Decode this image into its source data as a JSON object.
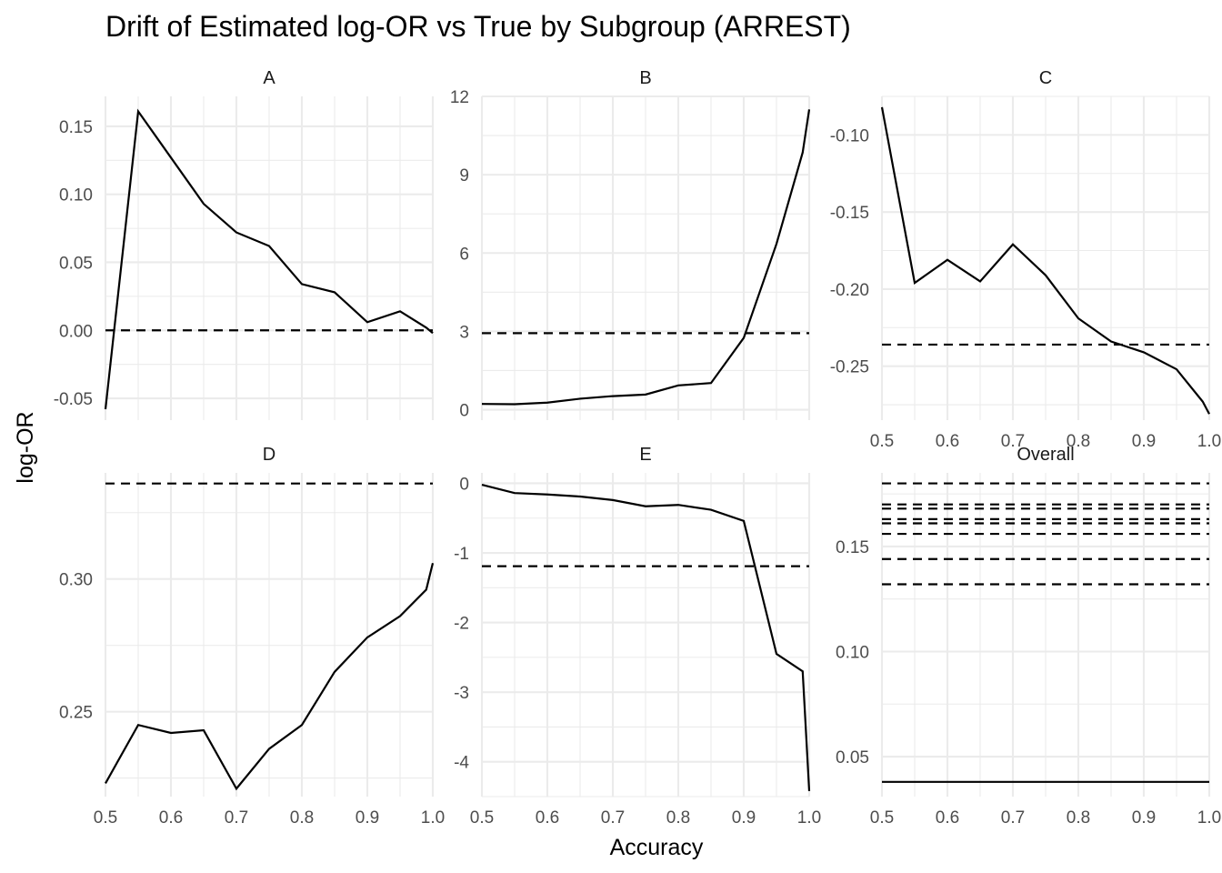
{
  "chart_data": {
    "type": "line",
    "title": "Drift of Estimated log-OR vs True by Subgroup (ARREST)",
    "xlabel": "Accuracy",
    "ylabel": "log-OR",
    "grid": true,
    "legend": "none",
    "line_styles": {
      "solid": "estimated log-OR",
      "dashed": "true log-OR"
    },
    "panels": [
      {
        "name": "A",
        "xlim": [
          0.5,
          1.0
        ],
        "ylim": [
          -0.066,
          0.172
        ],
        "y_ticks": [
          -0.05,
          0.0,
          0.05,
          0.1,
          0.15
        ],
        "y_tick_labels": [
          "-0.05",
          "0.00",
          "0.05",
          "0.10",
          "0.15"
        ],
        "show_x_ticks": false,
        "x": [
          0.5,
          0.55,
          0.6,
          0.65,
          0.7,
          0.75,
          0.8,
          0.85,
          0.9,
          0.95,
          0.99,
          1.0
        ],
        "estimated": [
          -0.058,
          0.161,
          0.127,
          0.093,
          0.072,
          0.062,
          0.034,
          0.028,
          0.006,
          0.014,
          0.002,
          -0.002
        ],
        "true_values": [
          0.0
        ]
      },
      {
        "name": "B",
        "xlim": [
          0.5,
          1.0
        ],
        "ylim": [
          -0.4,
          12.0
        ],
        "y_ticks": [
          0,
          3,
          6,
          9,
          12
        ],
        "y_tick_labels": [
          "0",
          "3",
          "6",
          "9",
          "12"
        ],
        "show_x_ticks": false,
        "x": [
          0.5,
          0.55,
          0.6,
          0.65,
          0.7,
          0.75,
          0.8,
          0.85,
          0.9,
          0.95,
          0.99,
          1.0
        ],
        "estimated": [
          0.22,
          0.21,
          0.27,
          0.42,
          0.52,
          0.58,
          0.93,
          1.02,
          2.75,
          6.35,
          9.85,
          11.5
        ],
        "true_values": [
          2.93
        ]
      },
      {
        "name": "C",
        "xlim": [
          0.5,
          1.0
        ],
        "ylim": [
          -0.285,
          -0.075
        ],
        "y_ticks": [
          -0.25,
          -0.2,
          -0.15,
          -0.1
        ],
        "y_tick_labels": [
          "-0.25",
          "-0.20",
          "-0.15",
          "-0.10"
        ],
        "show_x_ticks": true,
        "x": [
          0.5,
          0.55,
          0.6,
          0.65,
          0.7,
          0.75,
          0.8,
          0.85,
          0.9,
          0.95,
          0.99,
          1.0
        ],
        "estimated": [
          -0.082,
          -0.196,
          -0.181,
          -0.195,
          -0.171,
          -0.191,
          -0.219,
          -0.234,
          -0.241,
          -0.252,
          -0.273,
          -0.281
        ],
        "true_values": [
          -0.236
        ]
      },
      {
        "name": "D",
        "xlim": [
          0.5,
          1.0
        ],
        "ylim": [
          0.218,
          0.34
        ],
        "y_ticks": [
          0.25,
          0.3
        ],
        "y_tick_labels": [
          "0.25",
          "0.30"
        ],
        "show_x_ticks": true,
        "x": [
          0.5,
          0.55,
          0.6,
          0.65,
          0.7,
          0.75,
          0.8,
          0.85,
          0.9,
          0.95,
          0.99,
          1.0
        ],
        "estimated": [
          0.223,
          0.245,
          0.242,
          0.243,
          0.221,
          0.236,
          0.245,
          0.265,
          0.278,
          0.286,
          0.296,
          0.306
        ],
        "true_values": [
          0.336
        ]
      },
      {
        "name": "E",
        "xlim": [
          0.5,
          1.0
        ],
        "ylim": [
          -4.5,
          0.15
        ],
        "y_ticks": [
          -4,
          -3,
          -2,
          -1,
          0
        ],
        "y_tick_labels": [
          "-4",
          "-3",
          "-2",
          "-1",
          "0"
        ],
        "show_x_ticks": true,
        "x": [
          0.5,
          0.55,
          0.6,
          0.65,
          0.7,
          0.75,
          0.8,
          0.85,
          0.9,
          0.95,
          0.99,
          1.0
        ],
        "estimated": [
          -0.02,
          -0.14,
          -0.16,
          -0.19,
          -0.24,
          -0.33,
          -0.31,
          -0.38,
          -0.54,
          -2.45,
          -2.7,
          -4.42
        ],
        "true_values": [
          -1.19
        ]
      },
      {
        "name": "Overall",
        "xlim": [
          0.5,
          1.0
        ],
        "ylim": [
          0.031,
          0.185
        ],
        "y_ticks": [
          0.05,
          0.1,
          0.15
        ],
        "y_tick_labels": [
          "0.05",
          "0.10",
          "0.15"
        ],
        "show_x_ticks": true,
        "x": [
          0.5,
          1.0
        ],
        "estimated": [
          0.038,
          0.038
        ],
        "true_values": [
          0.18,
          0.17,
          0.168,
          0.163,
          0.161,
          0.156,
          0.144,
          0.132
        ]
      }
    ],
    "x_ticks": [
      0.5,
      0.6,
      0.7,
      0.8,
      0.9,
      1.0
    ],
    "x_tick_labels": [
      "0.5",
      "0.6",
      "0.7",
      "0.8",
      "0.9",
      "1.0"
    ]
  }
}
